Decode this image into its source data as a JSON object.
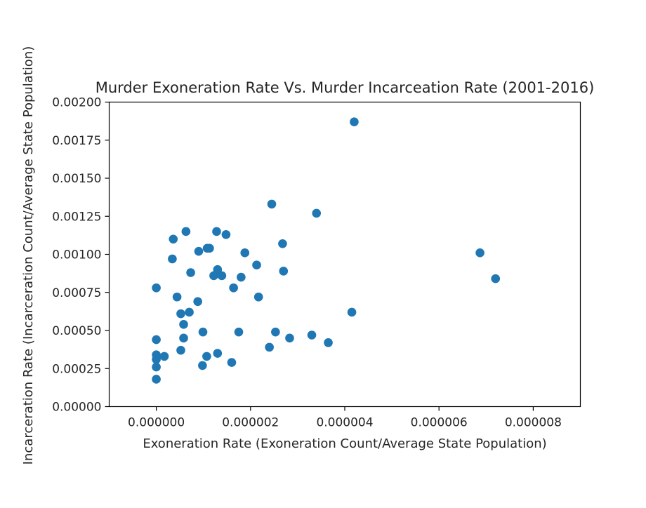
{
  "chart_data": {
    "type": "scatter",
    "title": "Murder Exoneration Rate Vs. Murder Incarceation Rate (2001-2016)",
    "xlabel": "Exoneration Rate (Exoneration Count/Average State Population)",
    "ylabel": "Incarceration Rate (Incarceration Count/Average State Population)",
    "xlim": [
      -1e-06,
      9e-06
    ],
    "ylim": [
      0,
      0.002
    ],
    "xticks": [
      {
        "value": 0,
        "label": "0.000000"
      },
      {
        "value": 2e-06,
        "label": "0.000002"
      },
      {
        "value": 4e-06,
        "label": "0.000004"
      },
      {
        "value": 6e-06,
        "label": "0.000006"
      },
      {
        "value": 8e-06,
        "label": "0.000008"
      }
    ],
    "yticks": [
      {
        "value": 0,
        "label": "0.00000"
      },
      {
        "value": 0.00025,
        "label": "0.00025"
      },
      {
        "value": 0.0005,
        "label": "0.00050"
      },
      {
        "value": 0.00075,
        "label": "0.00075"
      },
      {
        "value": 0.001,
        "label": "0.00100"
      },
      {
        "value": 0.00125,
        "label": "0.00125"
      },
      {
        "value": 0.0015,
        "label": "0.00150"
      },
      {
        "value": 0.00175,
        "label": "0.00175"
      },
      {
        "value": 0.002,
        "label": "0.00200"
      }
    ],
    "grid": false,
    "legend": "none",
    "marker_color": "#1f77b4",
    "points": [
      {
        "x": 4.2e-06,
        "y": 0.00187
      },
      {
        "x": 2.45e-06,
        "y": 0.00133
      },
      {
        "x": 3.4e-06,
        "y": 0.00127
      },
      {
        "x": 6.3e-07,
        "y": 0.00115
      },
      {
        "x": 1.28e-06,
        "y": 0.00115
      },
      {
        "x": 1.48e-06,
        "y": 0.00113
      },
      {
        "x": 3.6e-07,
        "y": 0.0011
      },
      {
        "x": 2.68e-06,
        "y": 0.00107
      },
      {
        "x": 1.08e-06,
        "y": 0.00104
      },
      {
        "x": 1.13e-06,
        "y": 0.00104
      },
      {
        "x": 9e-07,
        "y": 0.00102
      },
      {
        "x": 1.88e-06,
        "y": 0.00101
      },
      {
        "x": 6.87e-06,
        "y": 0.00101
      },
      {
        "x": 3.4e-07,
        "y": 0.00097
      },
      {
        "x": 2.13e-06,
        "y": 0.00093
      },
      {
        "x": 1.3e-06,
        "y": 0.0009
      },
      {
        "x": 7.3e-07,
        "y": 0.00088
      },
      {
        "x": 2.7e-06,
        "y": 0.00089
      },
      {
        "x": 1.22e-06,
        "y": 0.00086
      },
      {
        "x": 1.39e-06,
        "y": 0.00086
      },
      {
        "x": 1.8e-06,
        "y": 0.00085
      },
      {
        "x": 7.2e-06,
        "y": 0.00084
      },
      {
        "x": 0.0,
        "y": 0.00078
      },
      {
        "x": 1.64e-06,
        "y": 0.00078
      },
      {
        "x": 4.4e-07,
        "y": 0.00072
      },
      {
        "x": 2.17e-06,
        "y": 0.00072
      },
      {
        "x": 8.8e-07,
        "y": 0.00069
      },
      {
        "x": 5.2e-07,
        "y": 0.00061
      },
      {
        "x": 7e-07,
        "y": 0.00062
      },
      {
        "x": 4.15e-06,
        "y": 0.00062
      },
      {
        "x": 5.8e-07,
        "y": 0.00054
      },
      {
        "x": 9.9e-07,
        "y": 0.00049
      },
      {
        "x": 1.75e-06,
        "y": 0.00049
      },
      {
        "x": 2.53e-06,
        "y": 0.00049
      },
      {
        "x": 3.3e-06,
        "y": 0.00047
      },
      {
        "x": 0.0,
        "y": 0.00044
      },
      {
        "x": 5.8e-07,
        "y": 0.00045
      },
      {
        "x": 2.83e-06,
        "y": 0.00045
      },
      {
        "x": 3.65e-06,
        "y": 0.00042
      },
      {
        "x": 2.4e-06,
        "y": 0.00039
      },
      {
        "x": 5.2e-07,
        "y": 0.00037
      },
      {
        "x": 0.0,
        "y": 0.00034
      },
      {
        "x": 1.3e-06,
        "y": 0.00035
      },
      {
        "x": 1.7e-07,
        "y": 0.00033
      },
      {
        "x": 1.07e-06,
        "y": 0.00033
      },
      {
        "x": 0.0,
        "y": 0.00031
      },
      {
        "x": 1.6e-06,
        "y": 0.00029
      },
      {
        "x": 9.8e-07,
        "y": 0.00027
      },
      {
        "x": 0.0,
        "y": 0.00026
      },
      {
        "x": 0.0,
        "y": 0.00018
      }
    ]
  }
}
